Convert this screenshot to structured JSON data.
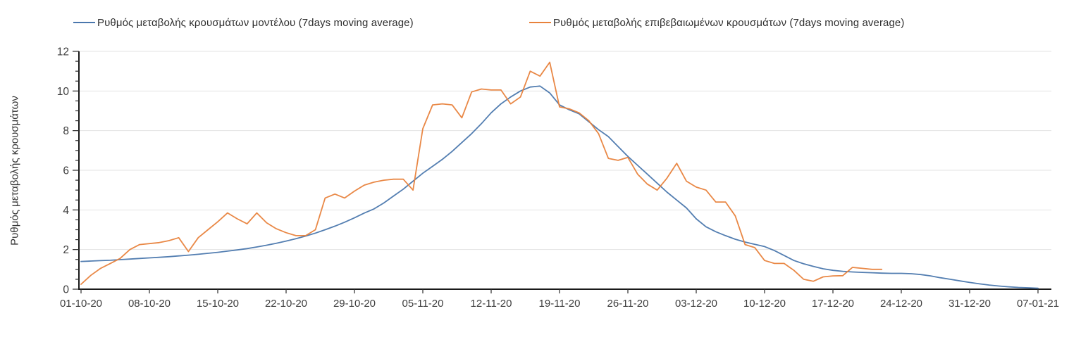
{
  "chart_data": {
    "type": "line",
    "title": "",
    "ylabel": "Ρυθμός μεταβολής κρουσμάτων",
    "xlabel": "",
    "ylim": [
      0,
      12
    ],
    "y_major_tick_step": 2,
    "y_minor_tick_step": 0.5,
    "y_tick_labels": [
      "0",
      "2",
      "4",
      "6",
      "8",
      "10",
      "12"
    ],
    "x_day_count": 98,
    "x_tick_step_days": 7,
    "x_tick_labels": [
      "01-10-20",
      "08-10-20",
      "15-10-20",
      "22-10-20",
      "29-10-20",
      "05-11-20",
      "12-11-20",
      "19-11-20",
      "26-11-20",
      "03-12-20",
      "10-12-20",
      "17-12-20",
      "24-12-20",
      "31-12-20",
      "07-01-21"
    ],
    "grid": "horizontal-only",
    "legend_position": "top",
    "style": {
      "grid_color": "#e3e3e3",
      "axis_color": "#1a1a1a",
      "tick_color": "#2b2b2b",
      "tick_label_color": "#3d3d3d",
      "background": "#ffffff"
    },
    "series": [
      {
        "id": "model",
        "name": "Ρυθμός μεταβολής κρουσμάτων μοντέλου (7days moving average)",
        "color": "#4a77ad",
        "start_day": 0,
        "values": [
          1.4,
          1.42,
          1.44,
          1.46,
          1.49,
          1.52,
          1.55,
          1.58,
          1.61,
          1.64,
          1.68,
          1.72,
          1.76,
          1.81,
          1.86,
          1.92,
          1.98,
          2.05,
          2.13,
          2.22,
          2.32,
          2.43,
          2.55,
          2.68,
          2.83,
          3.0,
          3.18,
          3.38,
          3.6,
          3.84,
          4.05,
          4.35,
          4.7,
          5.05,
          5.45,
          5.85,
          6.2,
          6.55,
          6.95,
          7.4,
          7.85,
          8.35,
          8.9,
          9.35,
          9.7,
          10.0,
          10.2,
          10.25,
          9.9,
          9.3,
          9.05,
          8.85,
          8.45,
          8.05,
          7.7,
          7.2,
          6.7,
          6.25,
          5.8,
          5.35,
          4.9,
          4.5,
          4.1,
          3.55,
          3.15,
          2.9,
          2.7,
          2.52,
          2.38,
          2.26,
          2.15,
          1.95,
          1.7,
          1.45,
          1.28,
          1.15,
          1.03,
          0.95,
          0.9,
          0.87,
          0.85,
          0.83,
          0.81,
          0.8,
          0.8,
          0.78,
          0.74,
          0.67,
          0.58,
          0.5,
          0.42,
          0.34,
          0.27,
          0.21,
          0.16,
          0.12,
          0.09,
          0.07,
          0.05
        ]
      },
      {
        "id": "confirmed",
        "name": "Ρυθμός μεταβολής επιβεβαιωμένων κρουσμάτων (7days moving average)",
        "color": "#e8823c",
        "start_day": 0,
        "values": [
          0.25,
          0.7,
          1.05,
          1.3,
          1.55,
          2.0,
          2.25,
          2.3,
          2.35,
          2.45,
          2.6,
          1.9,
          2.6,
          3.0,
          3.4,
          3.85,
          3.55,
          3.3,
          3.85,
          3.35,
          3.05,
          2.85,
          2.7,
          2.7,
          3.0,
          4.6,
          4.8,
          4.6,
          4.95,
          5.25,
          5.4,
          5.5,
          5.55,
          5.55,
          5.0,
          8.1,
          9.3,
          9.35,
          9.3,
          8.65,
          9.95,
          10.1,
          10.05,
          10.05,
          9.35,
          9.7,
          11.0,
          10.75,
          11.45,
          9.2,
          9.1,
          8.9,
          8.5,
          7.85,
          6.6,
          6.5,
          6.65,
          5.8,
          5.3,
          5.0,
          5.6,
          6.35,
          5.45,
          5.15,
          5.0,
          4.4,
          4.4,
          3.7,
          2.25,
          2.1,
          1.45,
          1.3,
          1.3,
          0.95,
          0.5,
          0.4,
          0.62,
          0.67,
          0.68,
          1.1,
          1.05,
          1.0,
          1.0
        ]
      }
    ]
  }
}
